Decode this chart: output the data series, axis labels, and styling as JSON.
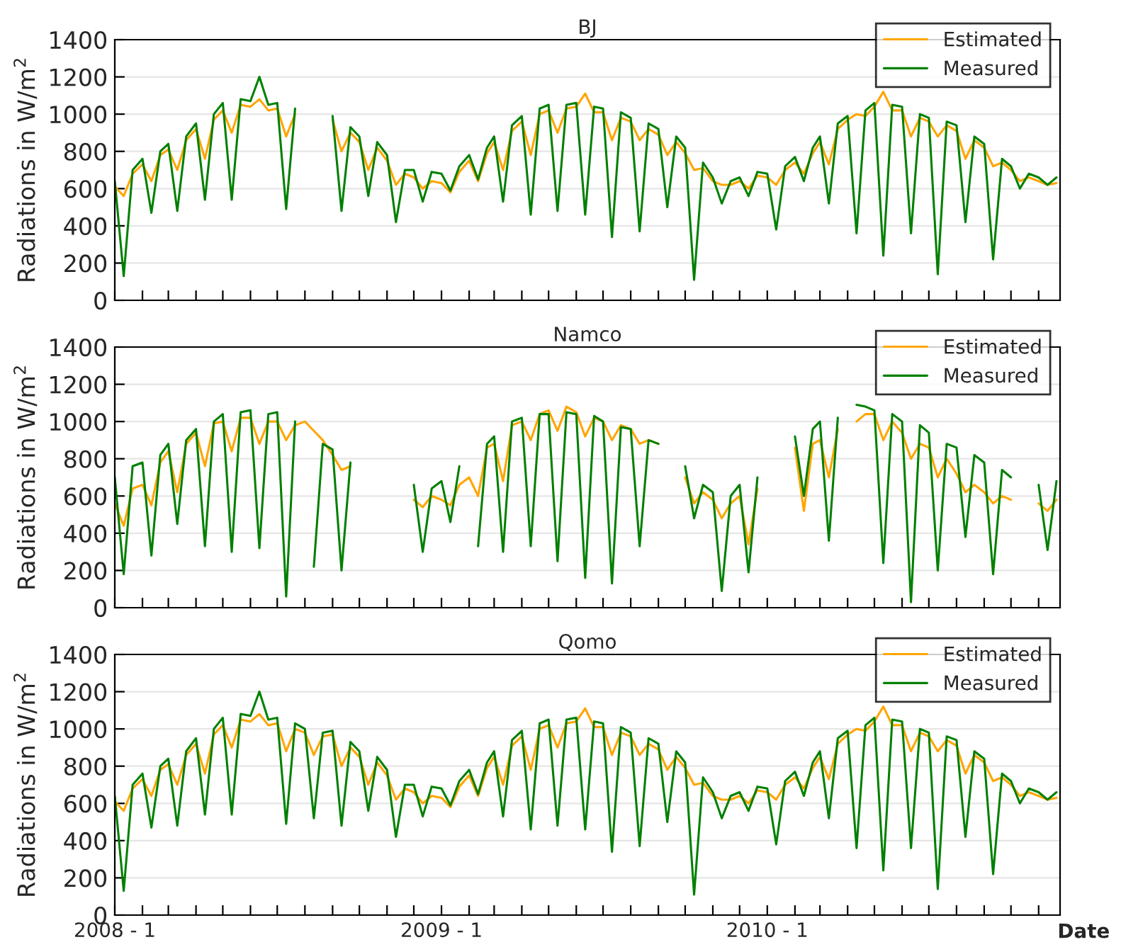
{
  "chart_data": [
    {
      "type": "line",
      "title": "BJ",
      "ylabel": "Radiations in W/m$^{2}$",
      "ylim": [
        0,
        1400
      ],
      "yticks": [
        0,
        200,
        400,
        600,
        800,
        1000,
        1200,
        1400
      ],
      "xlim": [
        "2008-01-01",
        "2010-11-25"
      ],
      "tick_labels": "y",
      "grid": "y",
      "legend": "top right",
      "xticks": [
        {
          "value": "2008-01-01",
          "label": null
        },
        {
          "value": "2008-02-01",
          "label": null
        },
        {
          "value": "2008-03-01",
          "label": null
        },
        {
          "value": "2008-04-01",
          "label": null
        },
        {
          "value": "2008-05-01",
          "label": null
        },
        {
          "value": "2008-06-01",
          "label": null
        },
        {
          "value": "2008-07-01",
          "label": null
        },
        {
          "value": "2008-08-01",
          "label": null
        },
        {
          "value": "2008-09-01",
          "label": null
        },
        {
          "value": "2008-10-01",
          "label": null
        },
        {
          "value": "2008-11-01",
          "label": null
        },
        {
          "value": "2008-12-01",
          "label": null
        },
        {
          "value": "2009-01-01",
          "label": null
        },
        {
          "value": "2009-02-01",
          "label": null
        },
        {
          "value": "2009-03-01",
          "label": null
        },
        {
          "value": "2009-04-01",
          "label": null
        },
        {
          "value": "2009-05-01",
          "label": null
        },
        {
          "value": "2009-06-01",
          "label": null
        },
        {
          "value": "2009-07-01",
          "label": null
        },
        {
          "value": "2009-08-01",
          "label": null
        },
        {
          "value": "2009-09-01",
          "label": null
        },
        {
          "value": "2009-10-01",
          "label": null
        },
        {
          "value": "2009-11-01",
          "label": null
        },
        {
          "value": "2009-12-01",
          "label": null
        },
        {
          "value": "2010-01-01",
          "label": null
        },
        {
          "value": "2010-02-01",
          "label": null
        },
        {
          "value": "2010-03-01",
          "label": null
        },
        {
          "value": "2010-04-01",
          "label": null
        },
        {
          "value": "2010-05-01",
          "label": null
        },
        {
          "value": "2010-06-01",
          "label": null
        },
        {
          "value": "2010-07-01",
          "label": null
        },
        {
          "value": "2010-08-01",
          "label": null
        },
        {
          "value": "2010-09-01",
          "label": null
        },
        {
          "value": "2010-10-01",
          "label": null
        },
        {
          "value": "2010-11-01",
          "label": null
        }
      ],
      "x": [
        "2008-01-01",
        "2008-01-11",
        "2008-01-21",
        "2008-02-01",
        "2008-02-11",
        "2008-02-21",
        "2008-03-01",
        "2008-03-11",
        "2008-03-21",
        "2008-04-01",
        "2008-04-11",
        "2008-04-21",
        "2008-05-01",
        "2008-05-11",
        "2008-05-21",
        "2008-06-01",
        "2008-06-11",
        "2008-06-21",
        "2008-07-01",
        "2008-07-11",
        "2008-07-21",
        "2008-08-01",
        "2008-08-11",
        "2008-08-21",
        "2008-09-01",
        "2008-09-11",
        "2008-09-21",
        "2008-10-01",
        "2008-10-11",
        "2008-10-21",
        "2008-11-01",
        "2008-11-11",
        "2008-11-21",
        "2008-12-01",
        "2008-12-11",
        "2008-12-21",
        "2009-01-01",
        "2009-01-11",
        "2009-01-21",
        "2009-02-01",
        "2009-02-11",
        "2009-02-21",
        "2009-03-01",
        "2009-03-11",
        "2009-03-21",
        "2009-04-01",
        "2009-04-11",
        "2009-04-21",
        "2009-05-01",
        "2009-05-11",
        "2009-05-21",
        "2009-06-01",
        "2009-06-11",
        "2009-06-21",
        "2009-07-01",
        "2009-07-11",
        "2009-07-21",
        "2009-08-01",
        "2009-08-11",
        "2009-08-21",
        "2009-09-01",
        "2009-09-11",
        "2009-09-21",
        "2009-10-01",
        "2009-10-11",
        "2009-10-21",
        "2009-11-01",
        "2009-11-11",
        "2009-11-21",
        "2009-12-01",
        "2009-12-11",
        "2009-12-21",
        "2010-01-01",
        "2010-01-11",
        "2010-01-21",
        "2010-02-01",
        "2010-02-11",
        "2010-02-21",
        "2010-03-01",
        "2010-03-11",
        "2010-03-21",
        "2010-04-01",
        "2010-04-11",
        "2010-04-21",
        "2010-05-01",
        "2010-05-11",
        "2010-05-21",
        "2010-06-01",
        "2010-06-11",
        "2010-06-21",
        "2010-07-01",
        "2010-07-11",
        "2010-07-21",
        "2010-08-01",
        "2010-08-11",
        "2010-08-21",
        "2010-09-01",
        "2010-09-11",
        "2010-09-21",
        "2010-10-01",
        "2010-10-11",
        "2010-10-21",
        "2010-11-01",
        "2010-11-11",
        "2010-11-21"
      ],
      "series": [
        {
          "name": "Estimated",
          "color": "#ffa500",
          "values": [
            610,
            560,
            680,
            730,
            640,
            780,
            810,
            700,
            860,
            920,
            760,
            970,
            1020,
            900,
            1050,
            1040,
            1080,
            1020,
            1030,
            880,
            1000,
            null,
            null,
            null,
            970,
            800,
            900,
            850,
            700,
            820,
            750,
            620,
            680,
            660,
            600,
            640,
            630,
            580,
            690,
            750,
            640,
            790,
            850,
            700,
            910,
            960,
            780,
            1000,
            1020,
            900,
            1030,
            1040,
            1110,
            1010,
            1010,
            860,
            980,
            960,
            860,
            920,
            890,
            780,
            850,
            790,
            700,
            710,
            640,
            620,
            620,
            640,
            600,
            670,
            660,
            620,
            700,
            740,
            680,
            790,
            850,
            730,
            920,
            970,
            1000,
            990,
            1040,
            1120,
            1020,
            1020,
            880,
            980,
            960,
            880,
            940,
            910,
            760,
            860,
            820,
            720,
            740,
            700,
            640,
            660,
            640,
            620,
            630
          ]
        },
        {
          "name": "Measured",
          "color": "#008000",
          "values": [
            640,
            130,
            700,
            760,
            470,
            800,
            840,
            480,
            880,
            950,
            540,
            1000,
            1060,
            540,
            1080,
            1070,
            1200,
            1050,
            1060,
            490,
            1030,
            null,
            null,
            null,
            990,
            480,
            930,
            880,
            560,
            850,
            780,
            420,
            700,
            700,
            530,
            690,
            680,
            590,
            720,
            780,
            650,
            820,
            880,
            530,
            940,
            990,
            460,
            1030,
            1050,
            480,
            1050,
            1060,
            460,
            1040,
            1030,
            340,
            1010,
            980,
            370,
            950,
            920,
            500,
            880,
            820,
            110,
            740,
            660,
            520,
            640,
            660,
            560,
            690,
            680,
            380,
            720,
            770,
            640,
            820,
            880,
            520,
            950,
            990,
            360,
            1020,
            1060,
            240,
            1050,
            1040,
            360,
            1000,
            980,
            140,
            960,
            940,
            420,
            880,
            840,
            220,
            760,
            720,
            600,
            680,
            660,
            620,
            660
          ]
        }
      ]
    },
    {
      "type": "line",
      "title": "Namco",
      "ylabel": "Radiations in W/m$^{2}$",
      "ylim": [
        0,
        1400
      ],
      "yticks": [
        0,
        200,
        400,
        600,
        800,
        1000,
        1200,
        1400
      ],
      "xlim": [
        "2008-01-01",
        "2010-11-25"
      ],
      "tick_labels": "y",
      "grid": "y",
      "legend": "top right",
      "xticks": [
        {
          "value": "2008-01-01",
          "label": null
        },
        {
          "value": "2008-02-01",
          "label": null
        },
        {
          "value": "2008-03-01",
          "label": null
        },
        {
          "value": "2008-04-01",
          "label": null
        },
        {
          "value": "2008-05-01",
          "label": null
        },
        {
          "value": "2008-06-01",
          "label": null
        },
        {
          "value": "2008-07-01",
          "label": null
        },
        {
          "value": "2008-08-01",
          "label": null
        },
        {
          "value": "2008-09-01",
          "label": null
        },
        {
          "value": "2008-10-01",
          "label": null
        },
        {
          "value": "2008-11-01",
          "label": null
        },
        {
          "value": "2008-12-01",
          "label": null
        },
        {
          "value": "2009-01-01",
          "label": null
        },
        {
          "value": "2009-02-01",
          "label": null
        },
        {
          "value": "2009-03-01",
          "label": null
        },
        {
          "value": "2009-04-01",
          "label": null
        },
        {
          "value": "2009-05-01",
          "label": null
        },
        {
          "value": "2009-06-01",
          "label": null
        },
        {
          "value": "2009-07-01",
          "label": null
        },
        {
          "value": "2009-08-01",
          "label": null
        },
        {
          "value": "2009-09-01",
          "label": null
        },
        {
          "value": "2009-10-01",
          "label": null
        },
        {
          "value": "2009-11-01",
          "label": null
        },
        {
          "value": "2009-12-01",
          "label": null
        },
        {
          "value": "2010-01-01",
          "label": null
        },
        {
          "value": "2010-02-01",
          "label": null
        },
        {
          "value": "2010-03-01",
          "label": null
        },
        {
          "value": "2010-04-01",
          "label": null
        },
        {
          "value": "2010-05-01",
          "label": null
        },
        {
          "value": "2010-06-01",
          "label": null
        },
        {
          "value": "2010-07-01",
          "label": null
        },
        {
          "value": "2010-08-01",
          "label": null
        },
        {
          "value": "2010-09-01",
          "label": null
        },
        {
          "value": "2010-10-01",
          "label": null
        },
        {
          "value": "2010-11-01",
          "label": null
        }
      ],
      "x": [
        "2008-01-01",
        "2008-01-11",
        "2008-01-21",
        "2008-02-01",
        "2008-02-11",
        "2008-02-21",
        "2008-03-01",
        "2008-03-11",
        "2008-03-21",
        "2008-04-01",
        "2008-04-11",
        "2008-04-21",
        "2008-05-01",
        "2008-05-11",
        "2008-05-21",
        "2008-06-01",
        "2008-06-11",
        "2008-06-21",
        "2008-07-01",
        "2008-07-11",
        "2008-07-21",
        "2008-08-01",
        "2008-08-11",
        "2008-08-21",
        "2008-09-01",
        "2008-09-11",
        "2008-09-21",
        "2008-10-01",
        "2008-10-11",
        "2008-10-21",
        "2008-11-01",
        "2008-11-11",
        "2008-11-21",
        "2008-12-01",
        "2008-12-11",
        "2008-12-21",
        "2009-01-01",
        "2009-01-11",
        "2009-01-21",
        "2009-02-01",
        "2009-02-11",
        "2009-02-21",
        "2009-03-01",
        "2009-03-11",
        "2009-03-21",
        "2009-04-01",
        "2009-04-11",
        "2009-04-21",
        "2009-05-01",
        "2009-05-11",
        "2009-05-21",
        "2009-06-01",
        "2009-06-11",
        "2009-06-21",
        "2009-07-01",
        "2009-07-11",
        "2009-07-21",
        "2009-08-01",
        "2009-08-11",
        "2009-08-21",
        "2009-09-01",
        "2009-09-11",
        "2009-09-21",
        "2009-10-01",
        "2009-10-11",
        "2009-10-21",
        "2009-11-01",
        "2009-11-11",
        "2009-11-21",
        "2009-12-01",
        "2009-12-11",
        "2009-12-21",
        "2010-01-01",
        "2010-01-11",
        "2010-01-21",
        "2010-02-01",
        "2010-02-11",
        "2010-02-21",
        "2010-03-01",
        "2010-03-11",
        "2010-03-21",
        "2010-04-01",
        "2010-04-11",
        "2010-04-21",
        "2010-05-01",
        "2010-05-11",
        "2010-05-21",
        "2010-06-01",
        "2010-06-11",
        "2010-06-21",
        "2010-07-01",
        "2010-07-11",
        "2010-07-21",
        "2010-08-01",
        "2010-08-11",
        "2010-08-21",
        "2010-09-01",
        "2010-09-11",
        "2010-09-21",
        "2010-10-01",
        "2010-10-11",
        "2010-10-21",
        "2010-11-01",
        "2010-11-11",
        "2010-11-21"
      ],
      "series": [
        {
          "name": "Estimated",
          "color": "#ffa500",
          "values": [
            560,
            440,
            640,
            660,
            550,
            780,
            840,
            620,
            880,
            940,
            760,
            990,
            1000,
            840,
            1020,
            1020,
            880,
            1000,
            1000,
            900,
            980,
            1000,
            950,
            900,
            820,
            740,
            760,
            null,
            null,
            null,
            null,
            null,
            null,
            580,
            540,
            600,
            580,
            550,
            660,
            700,
            600,
            860,
            880,
            680,
            980,
            1000,
            900,
            1040,
            1060,
            950,
            1080,
            1050,
            920,
            1020,
            1000,
            900,
            980,
            960,
            880,
            900,
            880,
            null,
            null,
            700,
            560,
            620,
            580,
            480,
            560,
            600,
            340,
            640,
            null,
            null,
            null,
            860,
            520,
            880,
            900,
            700,
            960,
            null,
            1000,
            1040,
            1040,
            900,
            1000,
            940,
            800,
            880,
            860,
            700,
            800,
            720,
            620,
            660,
            620,
            560,
            600,
            580,
            null,
            null,
            560,
            520,
            580
          ]
        },
        {
          "name": "Measured",
          "color": "#008000",
          "values": [
            700,
            180,
            760,
            780,
            280,
            820,
            880,
            450,
            900,
            960,
            330,
            1000,
            1040,
            300,
            1050,
            1060,
            320,
            1040,
            1050,
            60,
            1000,
            null,
            220,
            880,
            850,
            200,
            780,
            null,
            null,
            null,
            null,
            null,
            null,
            660,
            300,
            640,
            680,
            460,
            760,
            null,
            330,
            880,
            920,
            300,
            1000,
            1020,
            330,
            1040,
            1040,
            250,
            1050,
            1040,
            160,
            1030,
            1000,
            130,
            970,
            960,
            330,
            900,
            880,
            null,
            null,
            760,
            480,
            660,
            620,
            90,
            600,
            660,
            190,
            700,
            null,
            null,
            null,
            920,
            600,
            960,
            1000,
            360,
            1020,
            null,
            1090,
            1080,
            1060,
            240,
            1040,
            1000,
            30,
            980,
            940,
            200,
            880,
            860,
            380,
            820,
            780,
            180,
            740,
            700,
            null,
            null,
            660,
            310,
            680
          ]
        }
      ]
    },
    {
      "type": "line",
      "title": "Qomo",
      "ylabel": "Radiations in W/m$^{2}$",
      "xlabel": "Date",
      "ylim": [
        0,
        1400
      ],
      "yticks": [
        0,
        200,
        400,
        600,
        800,
        1000,
        1200,
        1400
      ],
      "xlim": [
        "2008-01-01",
        "2010-11-25"
      ],
      "grid": "y",
      "legend": "top right",
      "xticks": [
        {
          "value": "2008-01-01",
          "label": "2008 - 1"
        },
        {
          "value": "2008-02-01",
          "label": null
        },
        {
          "value": "2008-03-01",
          "label": null
        },
        {
          "value": "2008-04-01",
          "label": null
        },
        {
          "value": "2008-05-01",
          "label": null
        },
        {
          "value": "2008-06-01",
          "label": null
        },
        {
          "value": "2008-07-01",
          "label": null
        },
        {
          "value": "2008-08-01",
          "label": null
        },
        {
          "value": "2008-09-01",
          "label": null
        },
        {
          "value": "2008-10-01",
          "label": null
        },
        {
          "value": "2008-11-01",
          "label": null
        },
        {
          "value": "2008-12-01",
          "label": null
        },
        {
          "value": "2009-01-01",
          "label": "2009 - 1"
        },
        {
          "value": "2009-02-01",
          "label": null
        },
        {
          "value": "2009-03-01",
          "label": null
        },
        {
          "value": "2009-04-01",
          "label": null
        },
        {
          "value": "2009-05-01",
          "label": null
        },
        {
          "value": "2009-06-01",
          "label": null
        },
        {
          "value": "2009-07-01",
          "label": null
        },
        {
          "value": "2009-08-01",
          "label": null
        },
        {
          "value": "2009-09-01",
          "label": null
        },
        {
          "value": "2009-10-01",
          "label": null
        },
        {
          "value": "2009-11-01",
          "label": null
        },
        {
          "value": "2009-12-01",
          "label": null
        },
        {
          "value": "2010-01-01",
          "label": "2010 - 1"
        },
        {
          "value": "2010-02-01",
          "label": null
        },
        {
          "value": "2010-03-01",
          "label": null
        },
        {
          "value": "2010-04-01",
          "label": null
        },
        {
          "value": "2010-05-01",
          "label": null
        },
        {
          "value": "2010-06-01",
          "label": null
        },
        {
          "value": "2010-07-01",
          "label": null
        },
        {
          "value": "2010-08-01",
          "label": null
        },
        {
          "value": "2010-09-01",
          "label": null
        },
        {
          "value": "2010-10-01",
          "label": null
        },
        {
          "value": "2010-11-01",
          "label": null
        }
      ],
      "x": [
        "2008-01-01",
        "2008-01-11",
        "2008-01-21",
        "2008-02-01",
        "2008-02-11",
        "2008-02-21",
        "2008-03-01",
        "2008-03-11",
        "2008-03-21",
        "2008-04-01",
        "2008-04-11",
        "2008-04-21",
        "2008-05-01",
        "2008-05-11",
        "2008-05-21",
        "2008-06-01",
        "2008-06-11",
        "2008-06-21",
        "2008-07-01",
        "2008-07-11",
        "2008-07-21",
        "2008-08-01",
        "2008-08-11",
        "2008-08-21",
        "2008-09-01",
        "2008-09-11",
        "2008-09-21",
        "2008-10-01",
        "2008-10-11",
        "2008-10-21",
        "2008-11-01",
        "2008-11-11",
        "2008-11-21",
        "2008-12-01",
        "2008-12-11",
        "2008-12-21",
        "2009-01-01",
        "2009-01-11",
        "2009-01-21",
        "2009-02-01",
        "2009-02-11",
        "2009-02-21",
        "2009-03-01",
        "2009-03-11",
        "2009-03-21",
        "2009-04-01",
        "2009-04-11",
        "2009-04-21",
        "2009-05-01",
        "2009-05-11",
        "2009-05-21",
        "2009-06-01",
        "2009-06-11",
        "2009-06-21",
        "2009-07-01",
        "2009-07-11",
        "2009-07-21",
        "2009-08-01",
        "2009-08-11",
        "2009-08-21",
        "2009-09-01",
        "2009-09-11",
        "2009-09-21",
        "2009-10-01",
        "2009-10-11",
        "2009-10-21",
        "2009-11-01",
        "2009-11-11",
        "2009-11-21",
        "2009-12-01",
        "2009-12-11",
        "2009-12-21",
        "2010-01-01",
        "2010-01-11",
        "2010-01-21",
        "2010-02-01",
        "2010-02-11",
        "2010-02-21",
        "2010-03-01",
        "2010-03-11",
        "2010-03-21",
        "2010-04-01",
        "2010-04-11",
        "2010-04-21",
        "2010-05-01",
        "2010-05-11",
        "2010-05-21",
        "2010-06-01",
        "2010-06-11",
        "2010-06-21",
        "2010-07-01",
        "2010-07-11",
        "2010-07-21",
        "2010-08-01",
        "2010-08-11",
        "2010-08-21",
        "2010-09-01",
        "2010-09-11",
        "2010-09-21",
        "2010-10-01",
        "2010-10-11",
        "2010-10-21",
        "2010-11-01",
        "2010-11-11",
        "2010-11-21"
      ],
      "series": [
        {
          "name": "Estimated",
          "color": "#ffa500",
          "values": [
            610,
            560,
            680,
            730,
            640,
            780,
            810,
            700,
            860,
            920,
            760,
            970,
            1020,
            900,
            1050,
            1040,
            1080,
            1020,
            1030,
            880,
            1000,
            980,
            860,
            960,
            970,
            800,
            900,
            850,
            700,
            820,
            750,
            620,
            680,
            660,
            600,
            640,
            630,
            580,
            690,
            750,
            640,
            790,
            850,
            700,
            910,
            960,
            780,
            1000,
            1020,
            900,
            1030,
            1040,
            1110,
            1010,
            1010,
            860,
            980,
            960,
            860,
            920,
            890,
            780,
            850,
            790,
            700,
            710,
            640,
            620,
            620,
            640,
            600,
            670,
            660,
            620,
            700,
            740,
            680,
            790,
            850,
            730,
            920,
            970,
            1000,
            990,
            1040,
            1120,
            1020,
            1020,
            880,
            980,
            960,
            880,
            940,
            910,
            760,
            860,
            820,
            720,
            740,
            700,
            640,
            660,
            640,
            620,
            630
          ]
        },
        {
          "name": "Measured",
          "color": "#008000",
          "values": [
            640,
            130,
            700,
            760,
            470,
            800,
            840,
            480,
            880,
            950,
            540,
            1000,
            1060,
            540,
            1080,
            1070,
            1200,
            1050,
            1060,
            490,
            1030,
            1000,
            520,
            980,
            990,
            480,
            930,
            880,
            560,
            850,
            780,
            420,
            700,
            700,
            530,
            690,
            680,
            590,
            720,
            780,
            650,
            820,
            880,
            530,
            940,
            990,
            460,
            1030,
            1050,
            480,
            1050,
            1060,
            460,
            1040,
            1030,
            340,
            1010,
            980,
            370,
            950,
            920,
            500,
            880,
            820,
            110,
            740,
            660,
            520,
            640,
            660,
            560,
            690,
            680,
            380,
            720,
            770,
            640,
            820,
            880,
            520,
            950,
            990,
            360,
            1020,
            1060,
            240,
            1050,
            1040,
            360,
            1000,
            980,
            140,
            960,
            940,
            420,
            880,
            840,
            220,
            760,
            720,
            600,
            680,
            660,
            620,
            660
          ]
        }
      ]
    }
  ]
}
